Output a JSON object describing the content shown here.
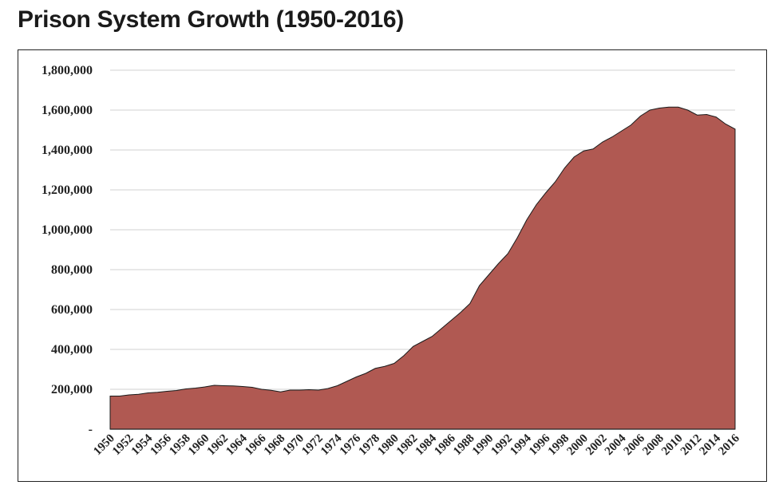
{
  "title": "Prison System Growth (1950-2016)",
  "colors": {
    "area": "#b05952",
    "grid": "#d9d9d9",
    "axis": "#222222"
  },
  "chart_data": {
    "type": "area",
    "title": "Prison System Growth (1950-2016)",
    "xlabel": "",
    "ylabel": "",
    "ylim": [
      0,
      1800000
    ],
    "yticks": [
      0,
      200000,
      400000,
      600000,
      800000,
      1000000,
      1200000,
      1400000,
      1600000,
      1800000
    ],
    "ytick_labels": [
      "-",
      "200,000",
      "400,000",
      "600,000",
      "800,000",
      "1,000,000",
      "1,200,000",
      "1,400,000",
      "1,600,000",
      "1,800,000"
    ],
    "xtick_labels": [
      "1950",
      "1952",
      "1954",
      "1956",
      "1958",
      "1960",
      "1962",
      "1964",
      "1966",
      "1968",
      "1970",
      "1972",
      "1974",
      "1976",
      "1978",
      "1980",
      "1982",
      "1984",
      "1986",
      "1988",
      "1990",
      "1992",
      "1994",
      "1996",
      "1998",
      "2000",
      "2002",
      "2004",
      "2006",
      "2008",
      "2010",
      "2012",
      "2014",
      "2016"
    ],
    "grid": true,
    "legend": "none",
    "x": [
      1950,
      1951,
      1952,
      1953,
      1954,
      1955,
      1956,
      1957,
      1958,
      1959,
      1960,
      1961,
      1962,
      1963,
      1964,
      1965,
      1966,
      1967,
      1968,
      1969,
      1970,
      1971,
      1972,
      1973,
      1974,
      1975,
      1976,
      1977,
      1978,
      1979,
      1980,
      1981,
      1982,
      1983,
      1984,
      1985,
      1986,
      1987,
      1988,
      1989,
      1990,
      1991,
      1992,
      1993,
      1994,
      1995,
      1996,
      1997,
      1998,
      1999,
      2000,
      2001,
      2002,
      2003,
      2004,
      2005,
      2006,
      2007,
      2008,
      2009,
      2010,
      2011,
      2012,
      2013,
      2014,
      2015,
      2016
    ],
    "values": [
      166000,
      166000,
      172000,
      175000,
      182000,
      185000,
      190000,
      194000,
      202000,
      206000,
      212000,
      220000,
      218000,
      217000,
      214000,
      210000,
      200000,
      195000,
      187000,
      196000,
      196000,
      198000,
      196000,
      204000,
      218000,
      240000,
      262000,
      280000,
      305000,
      315000,
      330000,
      368000,
      415000,
      440000,
      465000,
      505000,
      545000,
      585000,
      630000,
      720000,
      775000,
      830000,
      880000,
      960000,
      1050000,
      1125000,
      1185000,
      1240000,
      1310000,
      1365000,
      1395000,
      1405000,
      1440000,
      1465000,
      1495000,
      1525000,
      1570000,
      1600000,
      1610000,
      1615000,
      1615000,
      1600000,
      1575000,
      1578000,
      1565000,
      1530000,
      1505000
    ]
  }
}
